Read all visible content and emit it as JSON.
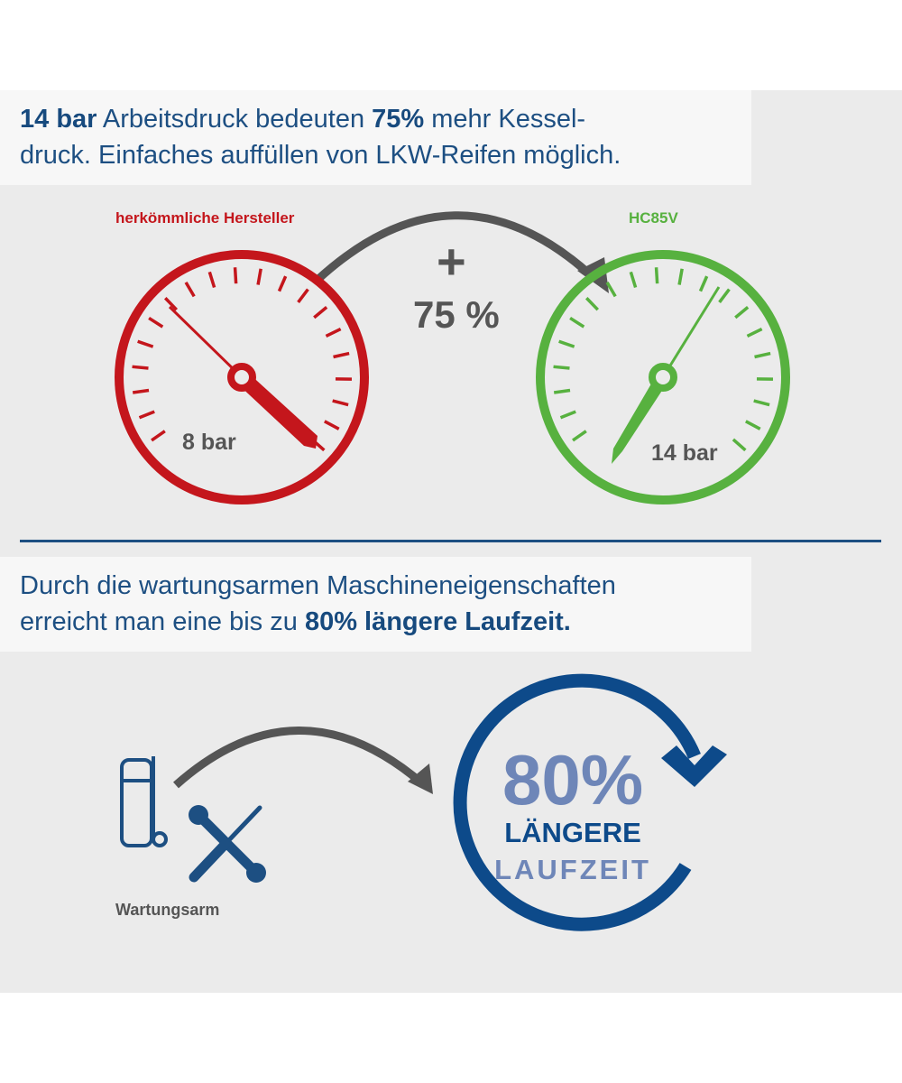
{
  "section1": {
    "headline_parts": [
      "14 bar",
      " Arbeitsdruck bedeuten ",
      "75%",
      " mehr Kessel-",
      "druck. Einfaches auffüllen von LKW-Reifen möglich."
    ],
    "left_gauge": {
      "title": "herkömmliche Hersteller",
      "value_label": "8 bar",
      "color": "#c4161c"
    },
    "right_gauge": {
      "title": "HC85V",
      "value_label": "14 bar",
      "color": "#57b13f"
    },
    "increase_sign": "+",
    "increase_label": "75 %"
  },
  "section2": {
    "headline_parts": [
      "Durch die wartungsarmen Maschineneigenschaften",
      "erreicht man eine bis zu ",
      "80% längere Laufzeit."
    ],
    "icon_label": "Wartungsarm",
    "big_value": "80%",
    "line1": "LÄNGERE",
    "line2": "LAUFZEIT",
    "color": "#0d4a8a"
  }
}
